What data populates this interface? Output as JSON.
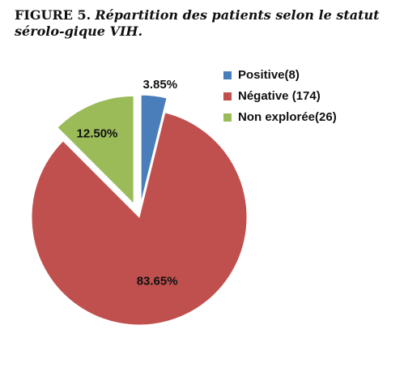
{
  "caption": {
    "label": "FIGURE 5.",
    "title": "Répartition des patients selon le statut sérolo-gique VIH."
  },
  "chart_data": {
    "type": "pie",
    "title": "",
    "categories": [
      "Positive",
      "Négative",
      "Non explorée"
    ],
    "values": [
      8,
      174,
      26
    ],
    "percent_labels": [
      "3.85%",
      "83.65%",
      "12.50%"
    ],
    "legend": [
      "Positive(8)",
      "Négative (174)",
      "Non explorée(26)"
    ],
    "colors": [
      "#4A7EBB",
      "#C0504D",
      "#9BBB59"
    ],
    "exploded": [
      true,
      false,
      true
    ],
    "legend_position": "right",
    "start_angle_deg": 0,
    "direction": "clockwise"
  }
}
